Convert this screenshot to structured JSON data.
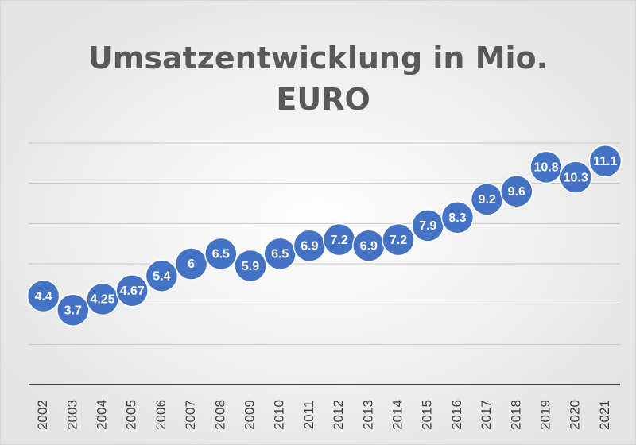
{
  "chart_data": {
    "type": "line",
    "title": "Umsatzentwicklung in Mio. EURO",
    "categories": [
      "2002",
      "2003",
      "2004",
      "2005",
      "2006",
      "2007",
      "2008",
      "2009",
      "2010",
      "2011",
      "2012",
      "2013",
      "2014",
      "2015",
      "2016",
      "2017",
      "2018",
      "2019",
      "2020",
      "2021"
    ],
    "values": [
      4.4,
      3.7,
      4.25,
      4.67,
      5.4,
      6,
      6.5,
      5.9,
      6.5,
      6.9,
      7.2,
      6.9,
      7.2,
      7.9,
      8.3,
      9.2,
      9.6,
      10.8,
      10.3,
      11.1
    ],
    "color": "#4472c4",
    "ylim": [
      0,
      12
    ],
    "yticks": [
      0,
      2,
      4,
      6,
      8,
      10,
      12
    ],
    "grid": true
  }
}
